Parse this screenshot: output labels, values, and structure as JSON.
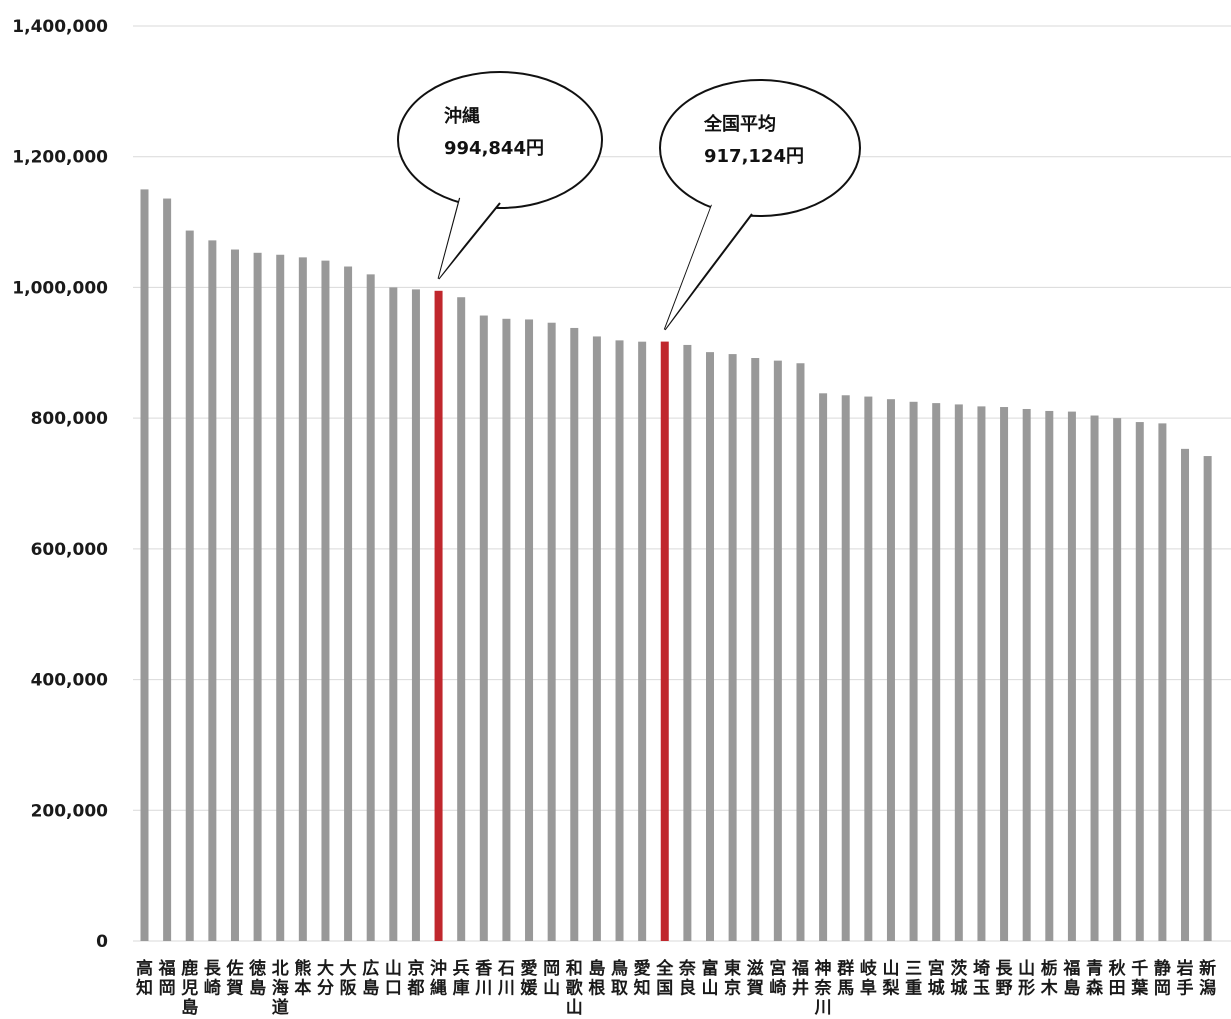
{
  "chart_data": {
    "type": "bar",
    "title": "",
    "xlabel": "",
    "ylabel": "",
    "ylim": [
      0,
      1400000
    ],
    "ytick_values": [
      0,
      200000,
      400000,
      600000,
      800000,
      1000000,
      1200000,
      1400000
    ],
    "ytick_labels": [
      "0",
      "200,000",
      "400,000",
      "600,000",
      "800,000",
      "1,000,000",
      "1,200,000",
      "1,400,000"
    ],
    "grid": "horizontal",
    "bar_color": "#999999",
    "highlight_color": "#c0272d",
    "categories": [
      "高知",
      "福岡",
      "鹿児島",
      "長崎",
      "佐賀",
      "徳島",
      "北海道",
      "熊本",
      "大分",
      "大阪",
      "広島",
      "山口",
      "京都",
      "沖縄",
      "兵庫",
      "香川",
      "石川",
      "愛媛",
      "岡山",
      "和歌山",
      "島根",
      "鳥取",
      "愛知",
      "全国",
      "奈良",
      "富山",
      "東京",
      "滋賀",
      "宮崎",
      "福井",
      "神奈川",
      "群馬",
      "岐阜",
      "山梨",
      "三重",
      "宮城",
      "茨城",
      "埼玉",
      "長野",
      "山形",
      "栃木",
      "福島",
      "青森",
      "秋田",
      "千葉",
      "静岡",
      "岩手",
      "新潟"
    ],
    "values": [
      1150000,
      1136000,
      1087000,
      1072000,
      1058000,
      1053000,
      1050000,
      1046000,
      1041000,
      1032000,
      1020000,
      1000000,
      997000,
      994844,
      985000,
      957000,
      952000,
      951000,
      946000,
      938000,
      925000,
      919000,
      917000,
      917124,
      912000,
      901000,
      898000,
      892000,
      888000,
      884000,
      838000,
      835000,
      833000,
      829000,
      825000,
      823000,
      821000,
      818000,
      817000,
      814000,
      811000,
      810000,
      804000,
      800000,
      794000,
      792000,
      753000,
      742000
    ],
    "highlighted": [
      "沖縄",
      "全国"
    ],
    "annotations": [
      {
        "category": "沖縄",
        "line1": "沖縄",
        "line2": "994,844円"
      },
      {
        "category": "全国",
        "line1": "全国平均",
        "line2": "917,124円"
      }
    ]
  }
}
